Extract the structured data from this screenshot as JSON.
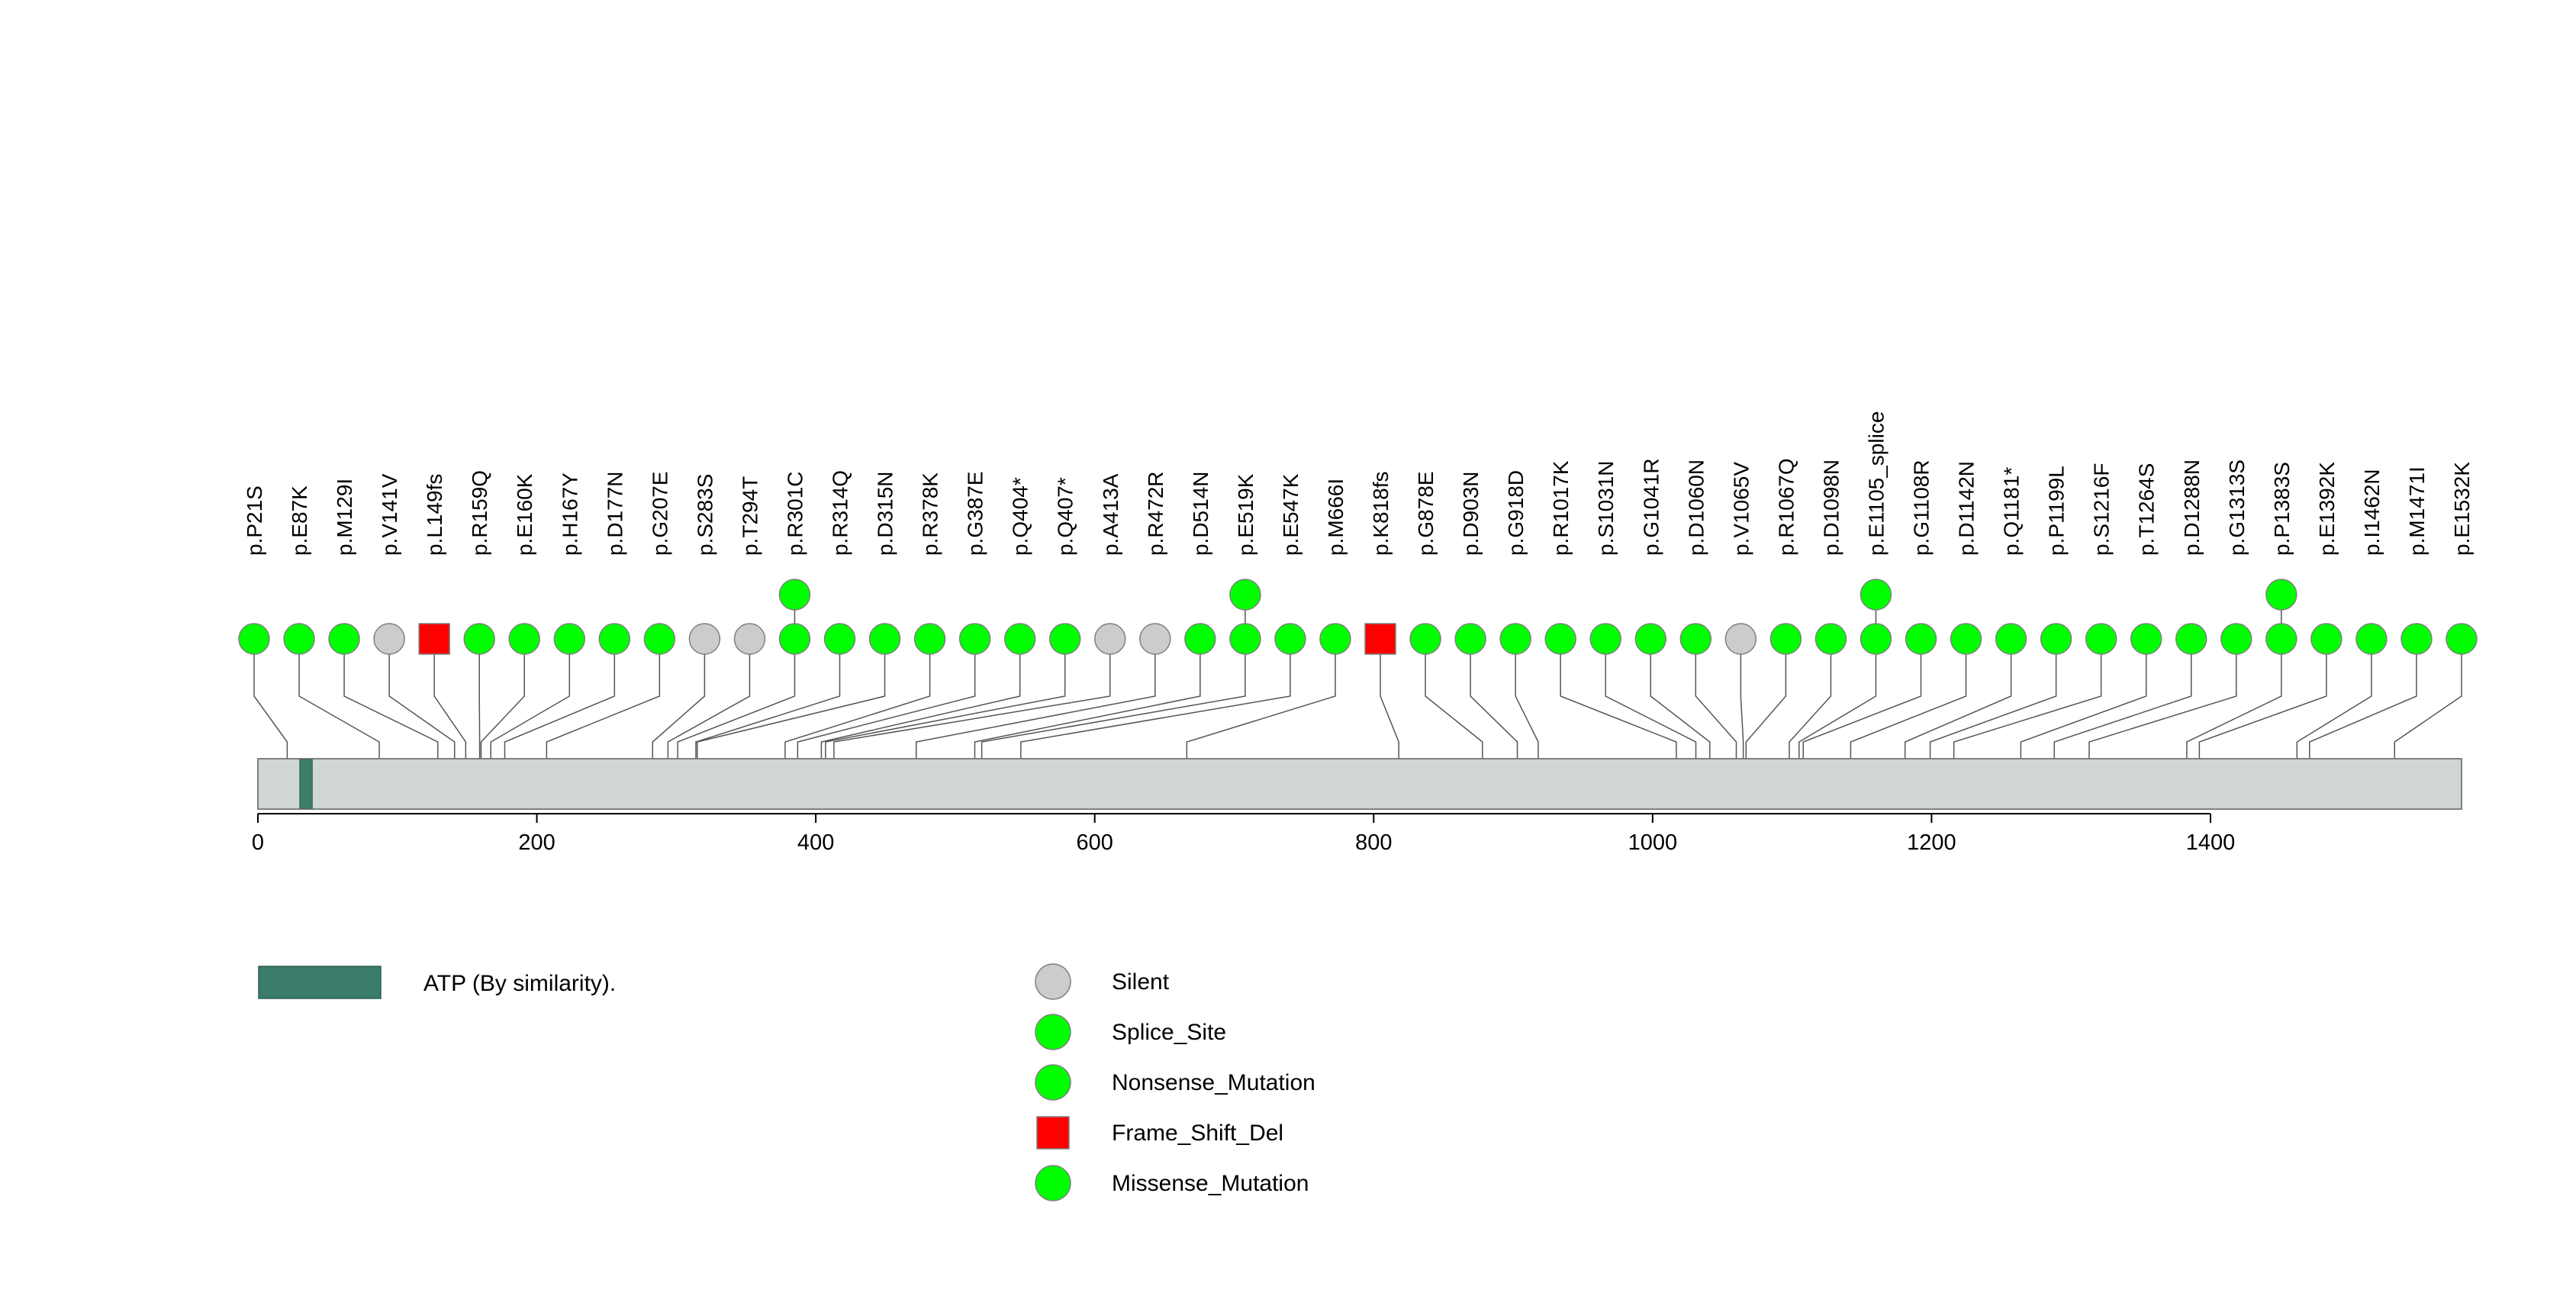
{
  "chart_data": {
    "type": "lollipop",
    "protein_length": 1580,
    "x_ticks": [
      0,
      200,
      400,
      600,
      800,
      1000,
      1200,
      1400
    ],
    "x_tick_labels": [
      "0",
      "200",
      "400",
      "600",
      "800",
      "1000",
      "1200",
      "1400"
    ],
    "domains": [
      {
        "name": "ATP (By similarity).",
        "start": 30,
        "end": 39,
        "color": "#3a7d6b"
      }
    ],
    "mutation_types": [
      {
        "name": "Silent",
        "shape": "circle",
        "color": "#cccccc"
      },
      {
        "name": "Splice_Site",
        "shape": "circle",
        "color": "#00ff00"
      },
      {
        "name": "Nonsense_Mutation",
        "shape": "circle",
        "color": "#00ff00"
      },
      {
        "name": "Frame_Shift_Del",
        "shape": "square",
        "color": "#ff0000"
      },
      {
        "name": "Missense_Mutation",
        "shape": "circle",
        "color": "#00ff00"
      }
    ],
    "mutations": [
      {
        "label": "p.P21S",
        "position": 21,
        "type": "Missense_Mutation",
        "count": 1
      },
      {
        "label": "p.E87K",
        "position": 87,
        "type": "Missense_Mutation",
        "count": 1
      },
      {
        "label": "p.M129I",
        "position": 129,
        "type": "Missense_Mutation",
        "count": 1
      },
      {
        "label": "p.V141V",
        "position": 141,
        "type": "Silent",
        "count": 1
      },
      {
        "label": "p.L149fs",
        "position": 149,
        "type": "Frame_Shift_Del",
        "count": 1
      },
      {
        "label": "p.R159Q",
        "position": 159,
        "type": "Missense_Mutation",
        "count": 1
      },
      {
        "label": "p.E160K",
        "position": 160,
        "type": "Missense_Mutation",
        "count": 1
      },
      {
        "label": "p.H167Y",
        "position": 167,
        "type": "Missense_Mutation",
        "count": 1
      },
      {
        "label": "p.D177N",
        "position": 177,
        "type": "Missense_Mutation",
        "count": 1
      },
      {
        "label": "p.G207E",
        "position": 207,
        "type": "Missense_Mutation",
        "count": 1
      },
      {
        "label": "p.S283S",
        "position": 283,
        "type": "Silent",
        "count": 1
      },
      {
        "label": "p.T294T",
        "position": 294,
        "type": "Silent",
        "count": 1
      },
      {
        "label": "p.R301C",
        "position": 301,
        "type": "Missense_Mutation",
        "count": 2
      },
      {
        "label": "p.R314Q",
        "position": 314,
        "type": "Missense_Mutation",
        "count": 1
      },
      {
        "label": "p.D315N",
        "position": 315,
        "type": "Missense_Mutation",
        "count": 1
      },
      {
        "label": "p.R378K",
        "position": 378,
        "type": "Missense_Mutation",
        "count": 1
      },
      {
        "label": "p.G387E",
        "position": 387,
        "type": "Missense_Mutation",
        "count": 1
      },
      {
        "label": "p.Q404*",
        "position": 404,
        "type": "Nonsense_Mutation",
        "count": 1
      },
      {
        "label": "p.Q407*",
        "position": 407,
        "type": "Nonsense_Mutation",
        "count": 1
      },
      {
        "label": "p.A413A",
        "position": 413,
        "type": "Silent",
        "count": 1
      },
      {
        "label": "p.R472R",
        "position": 472,
        "type": "Silent",
        "count": 1
      },
      {
        "label": "p.D514N",
        "position": 514,
        "type": "Missense_Mutation",
        "count": 1
      },
      {
        "label": "p.E519K",
        "position": 519,
        "type": "Missense_Mutation",
        "count": 2
      },
      {
        "label": "p.E547K",
        "position": 547,
        "type": "Missense_Mutation",
        "count": 1
      },
      {
        "label": "p.M666I",
        "position": 666,
        "type": "Missense_Mutation",
        "count": 1
      },
      {
        "label": "p.K818fs",
        "position": 818,
        "type": "Frame_Shift_Del",
        "count": 1
      },
      {
        "label": "p.G878E",
        "position": 878,
        "type": "Missense_Mutation",
        "count": 1
      },
      {
        "label": "p.D903N",
        "position": 903,
        "type": "Missense_Mutation",
        "count": 1
      },
      {
        "label": "p.G918D",
        "position": 918,
        "type": "Missense_Mutation",
        "count": 1
      },
      {
        "label": "p.R1017K",
        "position": 1017,
        "type": "Missense_Mutation",
        "count": 1
      },
      {
        "label": "p.S1031N",
        "position": 1031,
        "type": "Missense_Mutation",
        "count": 1
      },
      {
        "label": "p.G1041R",
        "position": 1041,
        "type": "Missense_Mutation",
        "count": 1
      },
      {
        "label": "p.D1060N",
        "position": 1060,
        "type": "Missense_Mutation",
        "count": 1
      },
      {
        "label": "p.V1065V",
        "position": 1065,
        "type": "Silent",
        "count": 1
      },
      {
        "label": "p.R1067Q",
        "position": 1067,
        "type": "Missense_Mutation",
        "count": 1
      },
      {
        "label": "p.D1098N",
        "position": 1098,
        "type": "Missense_Mutation",
        "count": 1
      },
      {
        "label": "p.E1105_splice",
        "position": 1105,
        "type": "Splice_Site",
        "count": 2
      },
      {
        "label": "p.G1108R",
        "position": 1108,
        "type": "Missense_Mutation",
        "count": 1
      },
      {
        "label": "p.D1142N",
        "position": 1142,
        "type": "Missense_Mutation",
        "count": 1
      },
      {
        "label": "p.Q1181*",
        "position": 1181,
        "type": "Nonsense_Mutation",
        "count": 1
      },
      {
        "label": "p.P1199L",
        "position": 1199,
        "type": "Missense_Mutation",
        "count": 1
      },
      {
        "label": "p.S1216F",
        "position": 1216,
        "type": "Missense_Mutation",
        "count": 1
      },
      {
        "label": "p.T1264S",
        "position": 1264,
        "type": "Missense_Mutation",
        "count": 1
      },
      {
        "label": "p.D1288N",
        "position": 1288,
        "type": "Missense_Mutation",
        "count": 1
      },
      {
        "label": "p.G1313S",
        "position": 1313,
        "type": "Missense_Mutation",
        "count": 1
      },
      {
        "label": "p.P1383S",
        "position": 1383,
        "type": "Missense_Mutation",
        "count": 2
      },
      {
        "label": "p.E1392K",
        "position": 1392,
        "type": "Missense_Mutation",
        "count": 1
      },
      {
        "label": "p.I1462N",
        "position": 1462,
        "type": "Missense_Mutation",
        "count": 1
      },
      {
        "label": "p.M1471I",
        "position": 1471,
        "type": "Missense_Mutation",
        "count": 1
      },
      {
        "label": "p.E1532K",
        "position": 1532,
        "type": "Missense_Mutation",
        "count": 1
      }
    ]
  }
}
